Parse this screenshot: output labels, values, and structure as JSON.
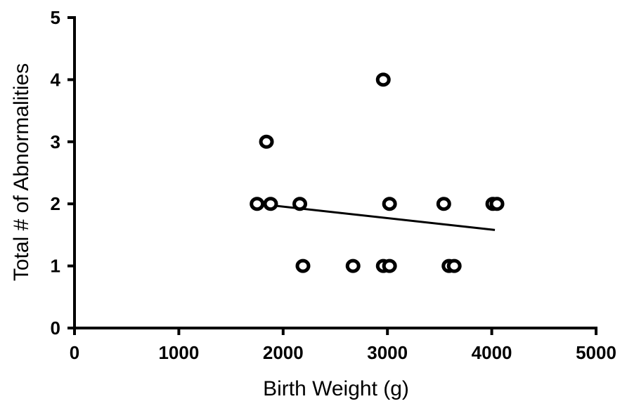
{
  "chart_data": {
    "type": "scatter",
    "title": "",
    "xlabel": "Birth Weight (g)",
    "ylabel": "Total # of Abnormalities",
    "xlim": [
      0,
      5000
    ],
    "ylim": [
      0,
      5
    ],
    "x_ticks": [
      0,
      1000,
      2000,
      3000,
      4000,
      5000
    ],
    "y_ticks": [
      0,
      1,
      2,
      3,
      4,
      5
    ],
    "grid": false,
    "marker": "open-circle",
    "points": [
      {
        "x": 1750,
        "y": 2
      },
      {
        "x": 1880,
        "y": 2
      },
      {
        "x": 2160,
        "y": 2
      },
      {
        "x": 3020,
        "y": 2
      },
      {
        "x": 3540,
        "y": 2
      },
      {
        "x": 4010,
        "y": 2
      },
      {
        "x": 4050,
        "y": 2
      },
      {
        "x": 1840,
        "y": 3
      },
      {
        "x": 2960,
        "y": 4
      },
      {
        "x": 2190,
        "y": 1
      },
      {
        "x": 2670,
        "y": 1
      },
      {
        "x": 2960,
        "y": 1
      },
      {
        "x": 3020,
        "y": 1
      },
      {
        "x": 3590,
        "y": 1
      },
      {
        "x": 3640,
        "y": 1
      }
    ],
    "trend_line": {
      "x": [
        1760,
        4030
      ],
      "y": [
        2.0,
        1.58
      ]
    }
  }
}
